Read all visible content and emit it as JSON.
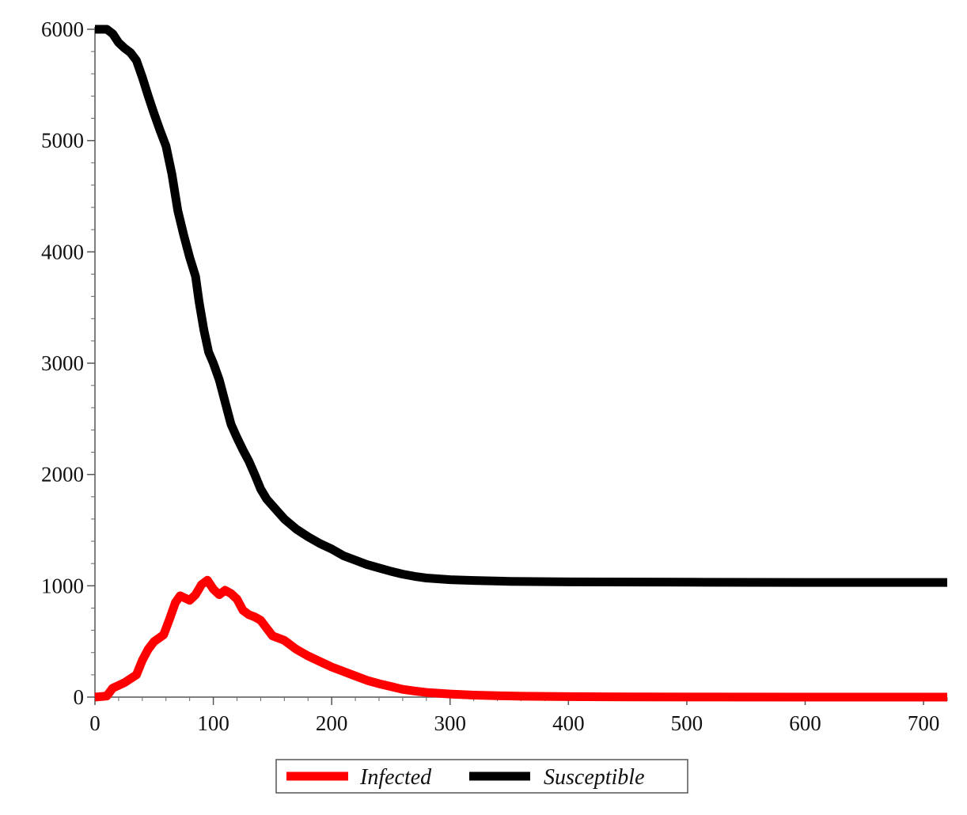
{
  "chart_data": {
    "type": "line",
    "title": "",
    "xlabel": "",
    "ylabel": "",
    "xlim": [
      0,
      720
    ],
    "ylim": [
      0,
      6000
    ],
    "x_ticks": [
      0,
      100,
      200,
      300,
      400,
      500,
      600,
      700
    ],
    "y_ticks": [
      0,
      1000,
      2000,
      3000,
      4000,
      5000,
      6000
    ],
    "x_tick_labels": [
      "0",
      "100",
      "200",
      "300",
      "400",
      "500",
      "600",
      "700"
    ],
    "y_tick_labels": [
      "0",
      "1000",
      "2000",
      "3000",
      "4000",
      "5000",
      "6000"
    ],
    "grid": false,
    "legend_position": "bottom-center",
    "series": [
      {
        "name": "Infected",
        "color": "#ff0000",
        "points": [
          [
            0,
            0
          ],
          [
            10,
            10
          ],
          [
            15,
            80
          ],
          [
            25,
            130
          ],
          [
            35,
            200
          ],
          [
            40,
            330
          ],
          [
            45,
            430
          ],
          [
            50,
            500
          ],
          [
            58,
            560
          ],
          [
            63,
            700
          ],
          [
            68,
            850
          ],
          [
            72,
            910
          ],
          [
            80,
            870
          ],
          [
            85,
            920
          ],
          [
            90,
            1010
          ],
          [
            95,
            1050
          ],
          [
            100,
            970
          ],
          [
            105,
            920
          ],
          [
            110,
            960
          ],
          [
            115,
            930
          ],
          [
            120,
            880
          ],
          [
            125,
            780
          ],
          [
            130,
            740
          ],
          [
            135,
            720
          ],
          [
            140,
            690
          ],
          [
            145,
            620
          ],
          [
            150,
            550
          ],
          [
            160,
            510
          ],
          [
            170,
            430
          ],
          [
            180,
            370
          ],
          [
            190,
            320
          ],
          [
            200,
            270
          ],
          [
            210,
            230
          ],
          [
            220,
            190
          ],
          [
            230,
            150
          ],
          [
            240,
            120
          ],
          [
            250,
            95
          ],
          [
            260,
            70
          ],
          [
            270,
            55
          ],
          [
            280,
            42
          ],
          [
            300,
            28
          ],
          [
            320,
            18
          ],
          [
            340,
            12
          ],
          [
            360,
            8
          ],
          [
            400,
            4
          ],
          [
            450,
            2
          ],
          [
            500,
            1
          ],
          [
            600,
            0
          ],
          [
            720,
            0
          ]
        ]
      },
      {
        "name": "Susceptible",
        "color": "#000000",
        "points": [
          [
            0,
            6000
          ],
          [
            10,
            6000
          ],
          [
            15,
            5960
          ],
          [
            20,
            5880
          ],
          [
            25,
            5830
          ],
          [
            30,
            5790
          ],
          [
            35,
            5720
          ],
          [
            40,
            5570
          ],
          [
            45,
            5400
          ],
          [
            50,
            5240
          ],
          [
            55,
            5090
          ],
          [
            60,
            4950
          ],
          [
            65,
            4700
          ],
          [
            70,
            4370
          ],
          [
            75,
            4150
          ],
          [
            80,
            3950
          ],
          [
            85,
            3780
          ],
          [
            88,
            3550
          ],
          [
            92,
            3300
          ],
          [
            96,
            3100
          ],
          [
            100,
            3000
          ],
          [
            105,
            2850
          ],
          [
            110,
            2650
          ],
          [
            115,
            2450
          ],
          [
            120,
            2330
          ],
          [
            125,
            2220
          ],
          [
            130,
            2120
          ],
          [
            135,
            2000
          ],
          [
            140,
            1870
          ],
          [
            145,
            1780
          ],
          [
            150,
            1720
          ],
          [
            160,
            1600
          ],
          [
            170,
            1510
          ],
          [
            180,
            1440
          ],
          [
            190,
            1380
          ],
          [
            200,
            1330
          ],
          [
            210,
            1270
          ],
          [
            220,
            1230
          ],
          [
            230,
            1190
          ],
          [
            240,
            1160
          ],
          [
            250,
            1130
          ],
          [
            260,
            1105
          ],
          [
            270,
            1085
          ],
          [
            280,
            1070
          ],
          [
            300,
            1055
          ],
          [
            320,
            1048
          ],
          [
            350,
            1040
          ],
          [
            400,
            1035
          ],
          [
            500,
            1032
          ],
          [
            600,
            1030
          ],
          [
            720,
            1030
          ]
        ]
      }
    ]
  }
}
